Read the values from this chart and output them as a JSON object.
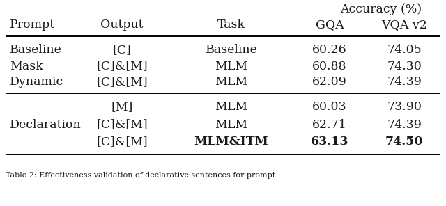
{
  "caption": "Table 2: Effectiveness validation of declarative sentences for prompt",
  "sections": [
    {
      "rows": [
        {
          "prompt": "Baseline",
          "output": "[C]",
          "task": "Baseline",
          "gqa": "60.26",
          "vqa": "74.05",
          "bold_gqa": false,
          "bold_vqa": false
        },
        {
          "prompt": "Mask",
          "output": "[C]&[M]",
          "task": "MLM",
          "gqa": "60.88",
          "vqa": "74.30",
          "bold_gqa": false,
          "bold_vqa": false
        },
        {
          "prompt": "Dynamic",
          "output": "[C]&[M]",
          "task": "MLM",
          "gqa": "62.09",
          "vqa": "74.39",
          "bold_gqa": false,
          "bold_vqa": false
        }
      ]
    },
    {
      "rows": [
        {
          "output": "[M]",
          "task": "MLM",
          "gqa": "60.03",
          "vqa": "73.90",
          "bold_gqa": false,
          "bold_vqa": false
        },
        {
          "output": "[C]&[M]",
          "task": "MLM",
          "gqa": "62.71",
          "vqa": "74.39",
          "bold_gqa": false,
          "bold_vqa": false
        },
        {
          "output": "[C]&[M]",
          "task": "MLM&ITM",
          "gqa": "63.13",
          "vqa": "74.50",
          "bold_gqa": true,
          "bold_vqa": true
        }
      ]
    }
  ],
  "bg_color": "#ffffff",
  "text_color": "#1a1a1a",
  "font_size": 12.5
}
